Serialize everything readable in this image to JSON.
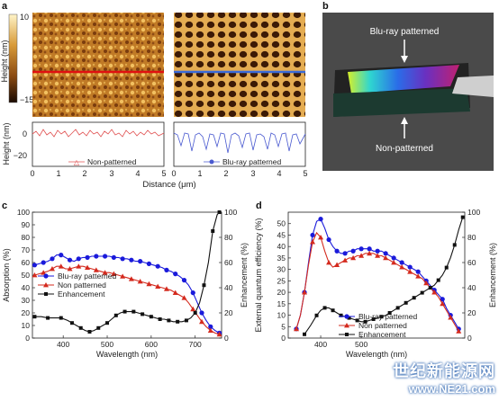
{
  "panels": {
    "a": {
      "label": "a",
      "colorbar": {
        "ylabel": "Height (nm)",
        "max_tick": "10",
        "min_tick": "−15"
      },
      "profile_ylabel": "Height (nm)",
      "profile_yticks": [
        "0",
        "−20"
      ],
      "legend_left": "Non-patterned",
      "legend_right": "Blu-ray patterned",
      "xticks_left": [
        "0",
        "1",
        "2",
        "3",
        "4",
        "5"
      ],
      "xticks_right": [
        "0",
        "1",
        "2",
        "3",
        "4",
        "5"
      ],
      "xlabel": "Distance (μm)"
    },
    "b": {
      "label": "b",
      "top_text": "Blu-ray patterned",
      "bottom_text": "Non-patterned"
    }
  },
  "chart_data": [
    {
      "panel": "c",
      "type": "line",
      "xlabel": "Wavelength (nm)",
      "ylabel": "Absorption (%)",
      "y2label": "Enhancement (%)",
      "xlim": [
        330,
        760
      ],
      "ylim": [
        0,
        100
      ],
      "y2lim": [
        0,
        100
      ],
      "xticks": [
        "400",
        "500",
        "600",
        "700"
      ],
      "yticks": [
        "0",
        "10",
        "20",
        "30",
        "40",
        "50",
        "60",
        "70",
        "80",
        "90",
        "100"
      ],
      "y2ticks": [
        "0",
        "20",
        "40",
        "60",
        "80",
        "100"
      ],
      "legend": [
        "Blu-ray patterned",
        "Non patterned",
        "Enhancement"
      ],
      "series": [
        {
          "name": "Blu-ray patterned",
          "color": "#1a1adb",
          "marker": "circle",
          "x": [
            335,
            345,
            355,
            365,
            375,
            385,
            395,
            405,
            415,
            425,
            435,
            445,
            455,
            465,
            475,
            485,
            495,
            505,
            515,
            525,
            535,
            545,
            555,
            565,
            575,
            585,
            595,
            605,
            615,
            625,
            635,
            645,
            655,
            665,
            675,
            685,
            695,
            705,
            715,
            725,
            735,
            745,
            755
          ],
          "y": [
            58,
            59,
            60,
            61,
            63,
            66,
            66,
            64,
            62,
            61,
            63,
            64,
            64,
            65,
            65,
            65,
            65,
            65,
            64,
            64,
            63,
            63,
            62,
            61,
            61,
            60,
            59,
            58,
            57,
            56,
            54,
            53,
            51,
            49,
            46,
            42,
            36,
            28,
            20,
            14,
            9,
            6,
            4
          ]
        },
        {
          "name": "Non patterned",
          "color": "#d42a1e",
          "marker": "triangle",
          "x": [
            335,
            345,
            355,
            365,
            375,
            385,
            395,
            405,
            415,
            425,
            435,
            445,
            455,
            465,
            475,
            485,
            495,
            505,
            515,
            525,
            535,
            545,
            555,
            565,
            575,
            585,
            595,
            605,
            615,
            625,
            635,
            645,
            655,
            665,
            675,
            685,
            695,
            705,
            715,
            725,
            735,
            745,
            755
          ],
          "y": [
            50,
            51,
            52,
            53,
            55,
            57,
            57,
            55,
            55,
            56,
            57,
            57,
            56,
            55,
            54,
            53,
            52,
            52,
            51,
            50,
            49,
            48,
            47,
            46,
            45,
            44,
            43,
            42,
            41,
            40,
            39,
            38,
            36,
            34,
            32,
            28,
            23,
            18,
            13,
            9,
            6,
            4,
            3
          ]
        },
        {
          "name": "Enhancement",
          "color": "#111111",
          "marker": "square",
          "x": [
            335,
            350,
            365,
            380,
            395,
            410,
            420,
            430,
            440,
            450,
            460,
            470,
            480,
            490,
            500,
            510,
            520,
            530,
            540,
            550,
            560,
            570,
            580,
            590,
            600,
            610,
            620,
            630,
            640,
            650,
            660,
            670,
            680,
            690,
            700,
            710,
            720,
            730,
            740,
            750,
            755
          ],
          "y": [
            17,
            17,
            16,
            16,
            16,
            14,
            12,
            10,
            8,
            6,
            5,
            6,
            8,
            10,
            12,
            15,
            18,
            20,
            21,
            21,
            21,
            20,
            19,
            18,
            17,
            16,
            15,
            15,
            14,
            13,
            13,
            13,
            14,
            16,
            20,
            28,
            42,
            60,
            85,
            98,
            100
          ]
        }
      ]
    },
    {
      "panel": "d",
      "type": "line",
      "xlabel": "Wavelength (nm)",
      "ylabel": "External quantum efficiency (%)",
      "y2label": "Enhancement (%)",
      "xlim": [
        320,
        755
      ],
      "ylim": [
        0,
        55
      ],
      "y2lim": [
        0,
        100
      ],
      "xticks": [
        "400",
        "500"
      ],
      "yticks": [
        "0",
        "5",
        "10",
        "15",
        "20",
        "25",
        "30",
        "35",
        "40",
        "45",
        "50"
      ],
      "y2ticks": [
        "0",
        "20",
        "40",
        "60",
        "80",
        "100"
      ],
      "legend": [
        "Blu-ray patterned",
        "Non patterned",
        "Enhancement"
      ],
      "series": [
        {
          "name": "Blu-ray patterned",
          "color": "#1a1adb",
          "marker": "circle",
          "x": [
            340,
            350,
            360,
            370,
            380,
            390,
            400,
            410,
            420,
            430,
            440,
            450,
            460,
            470,
            480,
            490,
            500,
            510,
            520,
            530,
            540,
            550,
            560,
            570,
            580,
            590,
            600,
            610,
            620,
            630,
            640,
            650,
            660,
            670,
            680,
            690,
            700,
            710,
            720,
            730,
            740
          ],
          "y": [
            4,
            10,
            20,
            33,
            45,
            51,
            52,
            48,
            43,
            40,
            38,
            37,
            37,
            38,
            38,
            39,
            39,
            39,
            39,
            38,
            38,
            38,
            37,
            36,
            35,
            34,
            33,
            32,
            31,
            30,
            29,
            27,
            25,
            23,
            21,
            19,
            17,
            13,
            10,
            7,
            4
          ]
        },
        {
          "name": "Non patterned",
          "color": "#d42a1e",
          "marker": "triangle",
          "x": [
            340,
            350,
            360,
            370,
            380,
            390,
            400,
            410,
            420,
            430,
            440,
            450,
            460,
            470,
            480,
            490,
            500,
            510,
            520,
            530,
            540,
            550,
            560,
            570,
            580,
            590,
            600,
            610,
            620,
            630,
            640,
            650,
            660,
            670,
            680,
            690,
            700,
            710,
            720,
            730,
            740
          ],
          "y": [
            4,
            10,
            20,
            32,
            42,
            46,
            44,
            38,
            33,
            31,
            32,
            33,
            34,
            35,
            35,
            36,
            36,
            37,
            37,
            37,
            36,
            36,
            35,
            34,
            33,
            32,
            31,
            30,
            29,
            28,
            27,
            26,
            24,
            22,
            20,
            18,
            15,
            12,
            9,
            6,
            3
          ]
        },
        {
          "name": "Enhancement",
          "color": "#111111",
          "marker": "square",
          "x": [
            360,
            375,
            390,
            400,
            410,
            420,
            430,
            440,
            450,
            460,
            470,
            480,
            490,
            500,
            510,
            520,
            530,
            540,
            550,
            560,
            570,
            580,
            590,
            600,
            610,
            620,
            630,
            640,
            650,
            660,
            670,
            680,
            690,
            700,
            710,
            720,
            730,
            740,
            750
          ],
          "y": [
            3,
            10,
            18,
            22,
            24,
            24,
            22,
            20,
            18,
            17,
            16,
            15,
            14,
            13,
            13,
            14,
            15,
            16,
            17,
            18,
            20,
            22,
            24,
            26,
            28,
            30,
            32,
            34,
            36,
            38,
            40,
            42,
            46,
            50,
            56,
            64,
            74,
            86,
            96
          ]
        }
      ]
    }
  ]
}
